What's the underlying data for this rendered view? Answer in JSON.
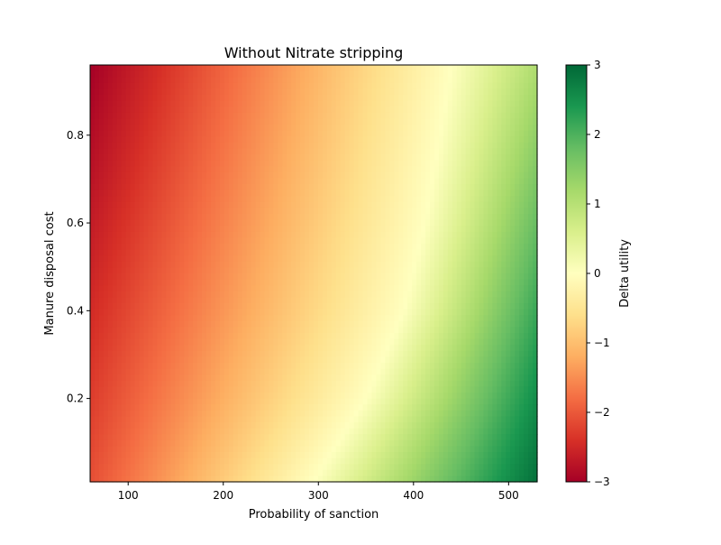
{
  "chart_data": {
    "type": "heatmap",
    "title": "Without Nitrate stripping",
    "xlabel": "Probability of sanction",
    "ylabel": "Manure disposal cost",
    "xlim": [
      60,
      530
    ],
    "ylim": [
      0.01,
      0.96
    ],
    "x_ticks": [
      100,
      200,
      300,
      400,
      500
    ],
    "y_ticks": [
      0.2,
      0.4,
      0.6,
      0.8
    ],
    "colormap": "RdYlGn",
    "colorbar": {
      "label": "Delta utility",
      "range": [
        -3,
        3
      ],
      "ticks": [
        3,
        2,
        1,
        0,
        -1,
        -2,
        -3
      ],
      "tick_labels": [
        "3",
        "2",
        "1",
        "0",
        "−1",
        "−2",
        "−3"
      ]
    },
    "zero_contour_x": [
      {
        "y": 0.01,
        "x": 295
      },
      {
        "y": 0.2,
        "x": 350
      },
      {
        "y": 0.4,
        "x": 390
      },
      {
        "y": 0.6,
        "x": 412
      },
      {
        "y": 0.8,
        "x": 428
      },
      {
        "y": 0.96,
        "x": 440
      }
    ],
    "corner_values": {
      "bottom_left": -2.1,
      "top_left": -3.0,
      "bottom_right": 2.9,
      "top_right": 1.1
    },
    "grid": false
  }
}
